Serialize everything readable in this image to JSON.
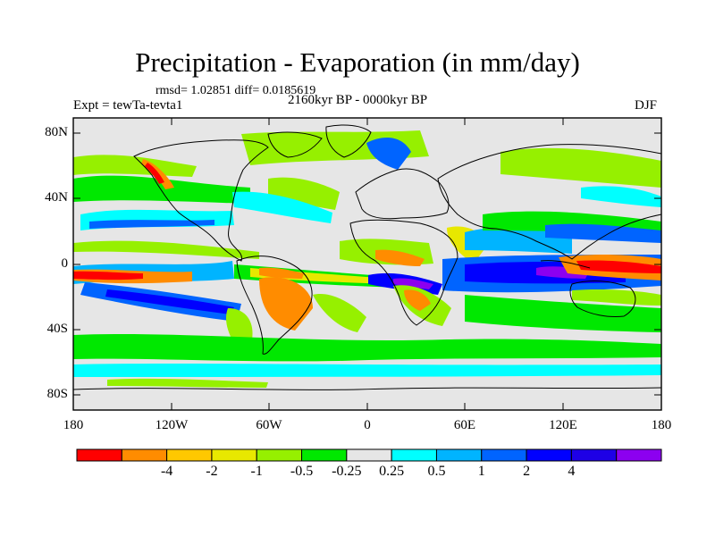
{
  "title": "Precipitation - Evaporation (in mm/day)",
  "stats": "rmsd= 1.02851  diff= 0.0185619",
  "experiment": "Expt = tewTa-tevta1",
  "period": "2160kyr BP - 0000kyr BP",
  "season": "DJF",
  "lat_labels": [
    "80N",
    "40N",
    "0",
    "40S",
    "80S"
  ],
  "lon_labels": [
    "180",
    "120W",
    "60W",
    "0",
    "60E",
    "120E",
    "180"
  ],
  "colorbar": {
    "colors": [
      "#ff0000",
      "#ff8c00",
      "#ffc800",
      "#e8e800",
      "#96f000",
      "#00e800",
      "#e6e6e6",
      "#00ffff",
      "#00b4ff",
      "#0064ff",
      "#0000ff",
      "#1e00e6",
      "#8c00f0"
    ],
    "labels": [
      "-4",
      "-2",
      "-1",
      "-0.5",
      "-0.25",
      "0.25",
      "0.5",
      "1",
      "2",
      "4"
    ]
  }
}
